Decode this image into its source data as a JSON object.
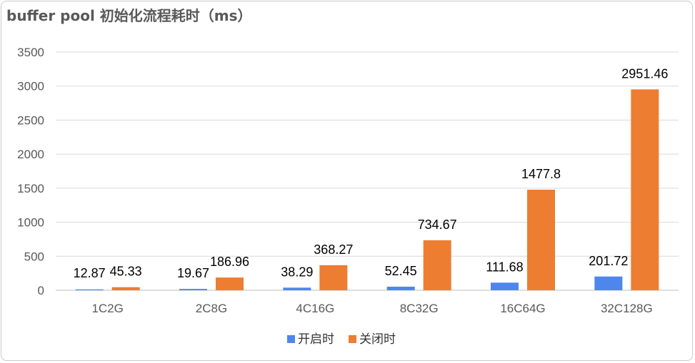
{
  "chart_data": {
    "type": "bar",
    "title": "buffer pool 初始化流程耗时（ms）",
    "categories": [
      "1C2G",
      "2C8G",
      "4C16G",
      "8C32G",
      "16C64G",
      "32C128G"
    ],
    "series": [
      {
        "name": "开启时",
        "color": "#4f86ec",
        "values": [
          12.87,
          19.67,
          38.29,
          52.45,
          111.68,
          201.72
        ],
        "labels": [
          "12.87",
          "19.67",
          "38.29",
          "52.45",
          "111.68",
          "201.72"
        ]
      },
      {
        "name": "关闭时",
        "color": "#ed7d31",
        "values": [
          45.33,
          186.96,
          368.27,
          734.67,
          1477.8,
          2951.46
        ],
        "labels": [
          "45.33",
          "186.96",
          "368.27",
          "734.67",
          "1477.8",
          "2951.46"
        ]
      }
    ],
    "yticks": [
      0,
      500,
      1000,
      1500,
      2000,
      2500,
      3000,
      3500
    ],
    "ylim": [
      0,
      3500
    ],
    "grid": true,
    "legend_position": "bottom"
  }
}
